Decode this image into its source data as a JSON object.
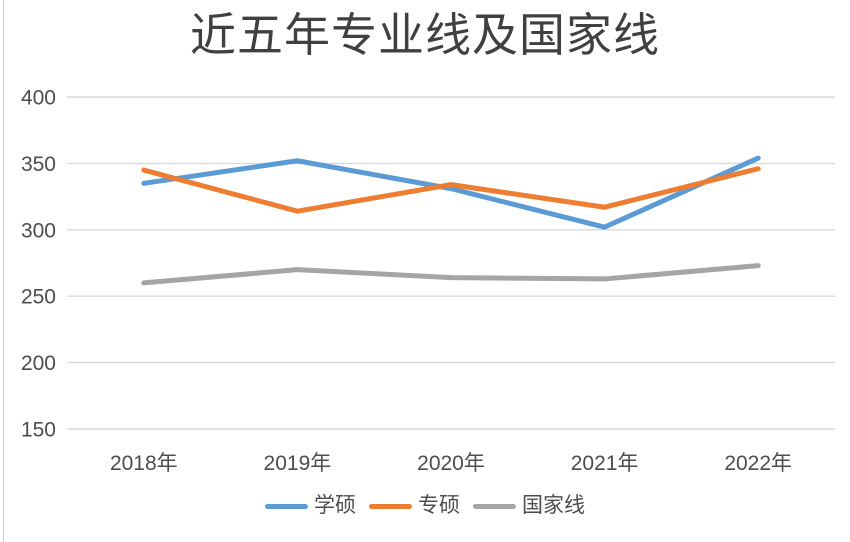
{
  "chart_data": {
    "type": "line",
    "title": "近五年专业线及国家线",
    "categories": [
      "2018年",
      "2019年",
      "2020年",
      "2021年",
      "2022年"
    ],
    "series": [
      {
        "name": "学硕",
        "color": "#5B9BD5",
        "values": [
          335,
          352,
          331,
          302,
          354
        ]
      },
      {
        "name": "专硕",
        "color": "#ED7D31",
        "values": [
          345,
          314,
          334,
          317,
          346
        ]
      },
      {
        "name": "国家线",
        "color": "#A5A5A5",
        "values": [
          260,
          270,
          264,
          263,
          273
        ]
      }
    ],
    "y_ticks": [
      400,
      350,
      300,
      250,
      200,
      150
    ],
    "ylim": [
      150,
      400
    ],
    "xlabel": "",
    "ylabel": "",
    "grid": "horizontal-only",
    "legend_position": "bottom"
  },
  "colors": {
    "background": "#FFFFFF",
    "gridline": "#D9D9D9",
    "axis_text": "#4D4D4D",
    "title_text": "#404040",
    "edge_line": "#CCCCCC"
  }
}
